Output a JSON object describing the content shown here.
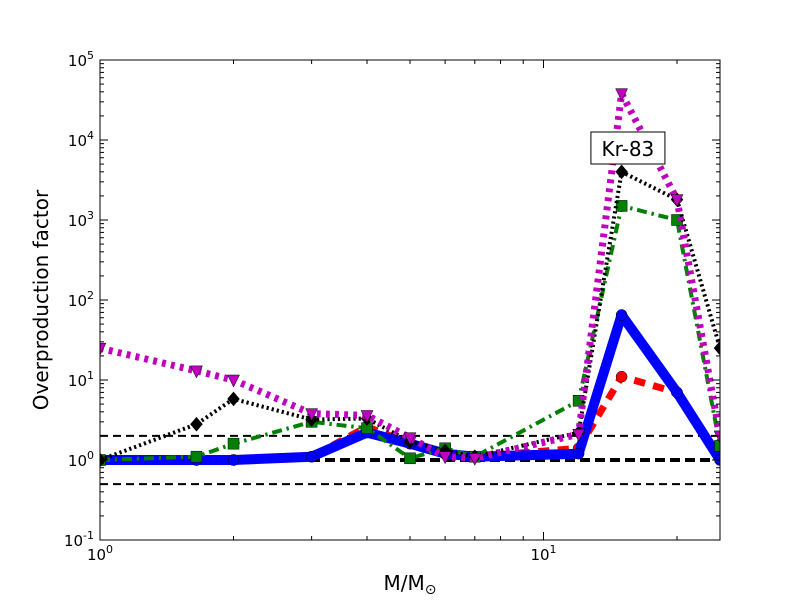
{
  "chart_data": {
    "type": "line",
    "title": "",
    "xlabel": "M/M",
    "xlabel_sub": "⊙",
    "ylabel": "Overproduction factor",
    "xscale": "log",
    "yscale": "log",
    "xlim": [
      1,
      25
    ],
    "ylim": [
      0.1,
      100000
    ],
    "grid": false,
    "legend": "none",
    "annotation": {
      "text": "Kr-83",
      "x": 15.5,
      "y": 7500
    },
    "x_ticks": [
      {
        "value": 1,
        "base": "10",
        "exp": "0"
      },
      {
        "value": 10,
        "base": "10",
        "exp": "1"
      }
    ],
    "y_ticks": [
      {
        "value": 0.1,
        "base": "10",
        "exp": "-1"
      },
      {
        "value": 1,
        "base": "10",
        "exp": "0"
      },
      {
        "value": 10,
        "base": "10",
        "exp": "1"
      },
      {
        "value": 100,
        "base": "10",
        "exp": "2"
      },
      {
        "value": 1000,
        "base": "10",
        "exp": "3"
      },
      {
        "value": 10000,
        "base": "10",
        "exp": "4"
      },
      {
        "value": 100000,
        "base": "10",
        "exp": "5"
      }
    ],
    "reference_lines": [
      {
        "y": 2.0,
        "color": "#000000",
        "style": "dashed",
        "width": 2
      },
      {
        "y": 1.0,
        "color": "#000000",
        "style": "dashed",
        "width": 4
      },
      {
        "y": 0.5,
        "color": "#000000",
        "style": "dashed",
        "width": 2
      }
    ],
    "series": [
      {
        "color": "#ff0000",
        "style": "dashed",
        "width": 7,
        "marker": "circle",
        "x": [
          1,
          1.65,
          2,
          3,
          4,
          5,
          6,
          7,
          12,
          15,
          20,
          25
        ],
        "y": [
          1.0,
          1.0,
          1.0,
          1.1,
          2.6,
          1.6,
          1.2,
          1.1,
          1.4,
          11,
          7,
          1.1
        ]
      },
      {
        "color": "#0000ff",
        "style": "solid",
        "width": 10,
        "marker": "circle",
        "x": [
          1,
          1.65,
          2,
          3,
          4,
          5,
          6,
          7,
          12,
          15,
          20,
          25
        ],
        "y": [
          1.0,
          1.0,
          1.0,
          1.1,
          2.2,
          1.6,
          1.2,
          1.1,
          1.2,
          65,
          7,
          1.0
        ]
      },
      {
        "color": "#008000",
        "style": "dashdot",
        "width": 4,
        "marker": "square",
        "x": [
          1,
          1.65,
          2,
          3,
          4,
          5,
          6,
          7,
          12,
          15,
          20,
          25
        ],
        "y": [
          1.0,
          1.1,
          1.6,
          3.0,
          2.5,
          1.05,
          1.4,
          1.1,
          5.5,
          1500,
          1000,
          1.5
        ]
      },
      {
        "color": "#000000",
        "style": "dotted",
        "width": 4,
        "marker": "diamond",
        "x": [
          1,
          1.65,
          2,
          3,
          4,
          5,
          6,
          7,
          12,
          15,
          20,
          25
        ],
        "y": [
          1.0,
          2.8,
          5.8,
          3.2,
          3.3,
          1.7,
          1.3,
          1.1,
          2.2,
          4000,
          1800,
          25
        ]
      },
      {
        "color": "#bf00bf",
        "style": "dotted",
        "width": 7,
        "marker": "triangle-down",
        "x": [
          1,
          1.65,
          2,
          3,
          4,
          5,
          6,
          7,
          12,
          15,
          20,
          25
        ],
        "y": [
          25,
          13,
          10,
          3.8,
          3.6,
          1.9,
          1.1,
          1.05,
          2.1,
          38000,
          1800,
          2.0
        ]
      }
    ]
  }
}
